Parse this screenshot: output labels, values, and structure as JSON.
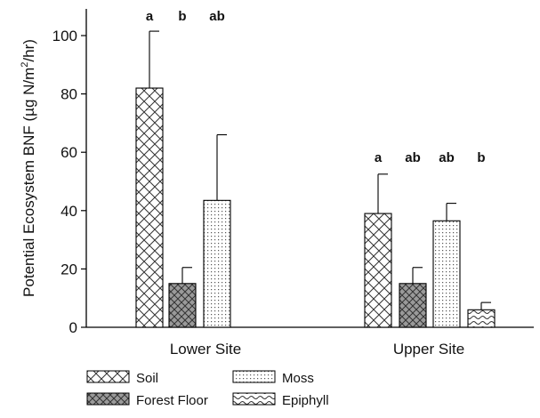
{
  "chart_data": {
    "type": "bar",
    "categories": [
      "Lower Site",
      "Upper Site"
    ],
    "ylabel_main": "Potential Ecosystem BNF (µg N/m",
    "ylabel_sup": "2",
    "ylabel_tail": "/hr)",
    "ylim": [
      0,
      110
    ],
    "yticks": [
      0,
      20,
      40,
      60,
      80,
      100
    ],
    "grid": false,
    "legend_position": "bottom-left",
    "series": [
      {
        "name": "Soil",
        "pattern": "crosshatch",
        "values": [
          82,
          39
        ],
        "errors": [
          19.5,
          13.5
        ],
        "significance": [
          "a",
          "a"
        ]
      },
      {
        "name": "Forest Floor",
        "pattern": "dense-crosshatch-gray",
        "values": [
          15,
          15
        ],
        "errors": [
          5.5,
          5.5
        ],
        "significance": [
          "b",
          "ab"
        ]
      },
      {
        "name": "Moss",
        "pattern": "dotted",
        "values": [
          43.5,
          36.5
        ],
        "errors": [
          22.5,
          6
        ],
        "significance": [
          "ab",
          "ab"
        ]
      },
      {
        "name": "Epiphyll",
        "pattern": "wavy",
        "values": [
          null,
          6
        ],
        "errors": [
          null,
          2.5
        ],
        "significance": [
          null,
          "b"
        ]
      }
    ]
  }
}
